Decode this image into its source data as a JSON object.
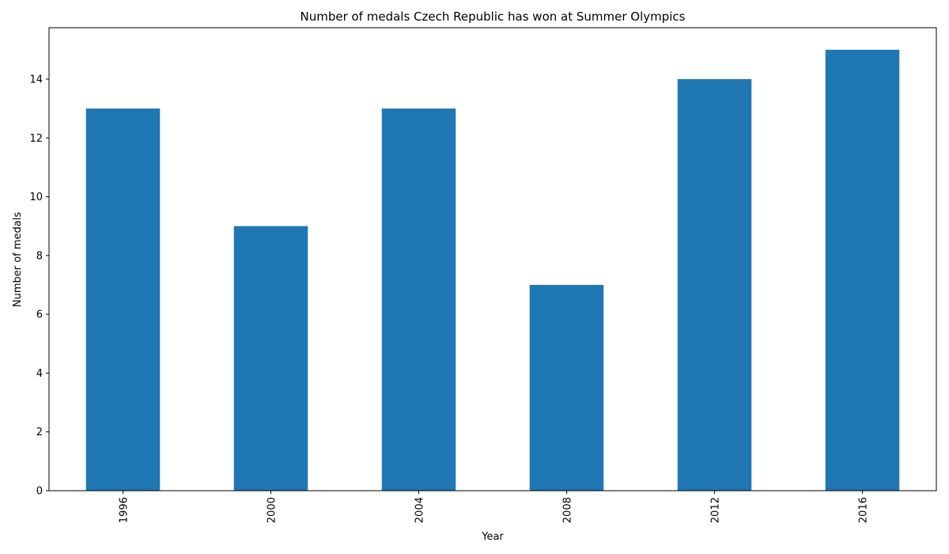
{
  "chart_data": {
    "type": "bar",
    "title": "Number of medals Czech Republic has won at Summer Olympics",
    "xlabel": "Year",
    "ylabel": "Number of medals",
    "categories": [
      "1996",
      "2000",
      "2004",
      "2008",
      "2012",
      "2016"
    ],
    "values": [
      13,
      9,
      13,
      7,
      14,
      15
    ],
    "ylim": [
      0,
      15.75
    ],
    "yticks": [
      0,
      2,
      4,
      6,
      8,
      10,
      12,
      14
    ],
    "x_tick_rotation": "vertical",
    "grid": false,
    "legend": "none",
    "bar_color": "#1f77b4"
  }
}
